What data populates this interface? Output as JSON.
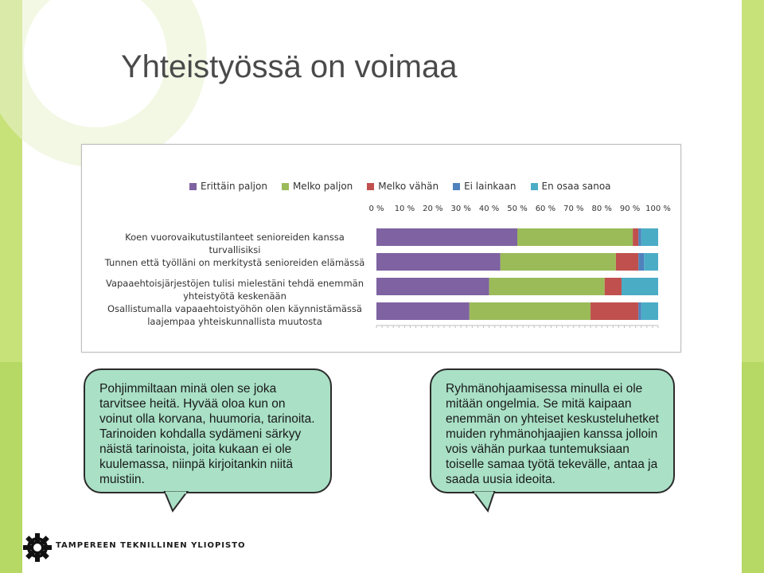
{
  "slide": {
    "title": "Yhteistyössä on voimaa",
    "bubble_left": "Pohjimmiltaan minä olen se joka tarvitsee heitä. Hyvää oloa kun on voinut olla korvana, huumoria, tarinoita. Tarinoiden kohdalla sydämeni särkyy näistä tarinoista, joita kukaan ei ole kuulemassa, niinpä kirjoitankin niitä muistiin.",
    "bubble_right": "Ryhmänohjaamisessa minulla ei ole mitään ongelmia. Se mitä kaipaan enemmän on yhteiset keskusteluhetket muiden ryhmänohjaajien kanssa jolloin vois vähän purkaa tuntemuksiaan toiselle samaa työtä tekevälle, antaa ja saada uusia ideoita.",
    "footer": "TAMPEREEN TEKNILLINEN YLIOPISTO"
  },
  "chart_data": {
    "type": "bar",
    "orientation": "horizontal",
    "stacked": "percent",
    "categories": [
      "Koen vuorovaikutustilanteet senioreiden kanssa turvallisiksi",
      "Tunnen että työlläni on merkitystä senioreiden elämässä",
      "Vapaaehtoisjärjestöjen tulisi mielestäni tehdä enemmän yhteistyötä keskenään",
      "Osallistumalla vapaaehtoistyöhön olen käynnistämässä laajempaa yhteiskunnallista muutosta"
    ],
    "series": [
      {
        "name": "Erittäin paljon",
        "color": "#7e62a1",
        "values": [
          50,
          44,
          40,
          33
        ]
      },
      {
        "name": "Melko paljon",
        "color": "#9bbb59",
        "values": [
          41,
          41,
          41,
          43
        ]
      },
      {
        "name": "Melko vähän",
        "color": "#c0504d",
        "values": [
          2,
          8,
          6,
          17
        ]
      },
      {
        "name": "Ei lainkaan",
        "color": "#4f81bd",
        "values": [
          1,
          2,
          0,
          1
        ]
      },
      {
        "name": "En osaa sanoa",
        "color": "#4bacc6",
        "values": [
          6,
          5,
          13,
          6
        ]
      }
    ],
    "xticks": [
      "0 %",
      "10 %",
      "20 %",
      "30 %",
      "40 %",
      "50 %",
      "60 %",
      "70 %",
      "80 %",
      "90 %",
      "100 %"
    ],
    "xlim": [
      0,
      100
    ],
    "legend_position": "top",
    "grid": false
  }
}
